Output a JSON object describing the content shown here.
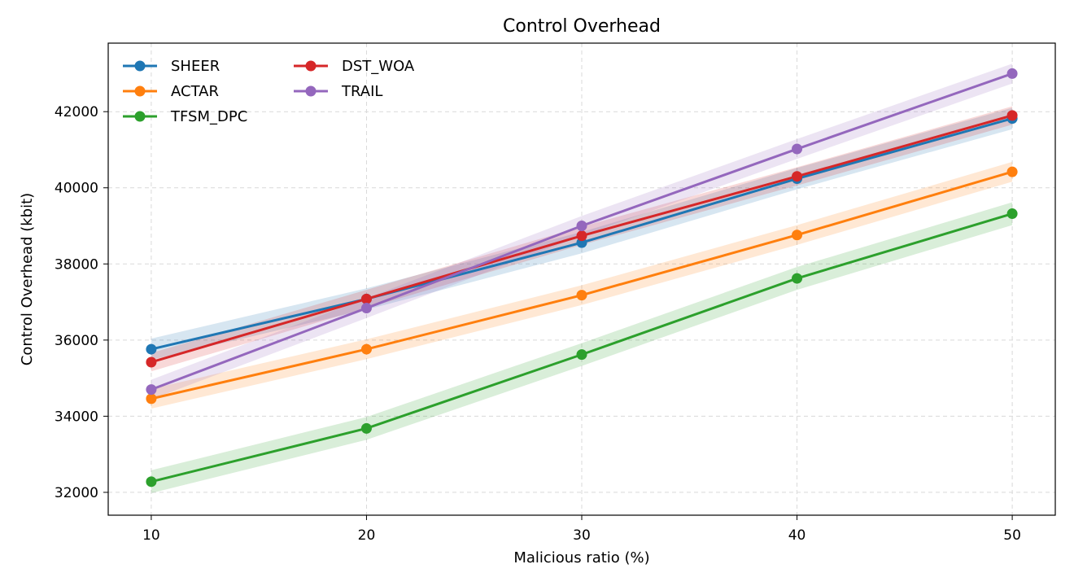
{
  "chart_data": {
    "type": "line",
    "title": "Control Overhead",
    "xlabel": "Malicious ratio (%)",
    "ylabel": "Control Overhead (kbit)",
    "x": [
      10,
      20,
      30,
      40,
      50
    ],
    "xlim": [
      8,
      52
    ],
    "ylim": [
      31400,
      43800
    ],
    "xticks": [
      10,
      20,
      30,
      40,
      50
    ],
    "yticks": [
      32000,
      34000,
      36000,
      38000,
      40000,
      42000
    ],
    "grid": true,
    "legend_position": "top-left",
    "series": [
      {
        "name": "SHEER",
        "color": "#1f77b4",
        "values": [
          35760,
          37080,
          38560,
          40240,
          41820
        ],
        "band": 280
      },
      {
        "name": "ACTAR",
        "color": "#ff7f0e",
        "values": [
          34460,
          35760,
          37180,
          38760,
          40420
        ],
        "band": 260
      },
      {
        "name": "TFSM_DPC",
        "color": "#2ca02c",
        "values": [
          32280,
          33680,
          35620,
          37620,
          39320
        ],
        "band": 300
      },
      {
        "name": "DST_WOA",
        "color": "#d62728",
        "values": [
          35420,
          37080,
          38740,
          40300,
          41900
        ],
        "band": 240
      },
      {
        "name": "TRAIL",
        "color": "#9467bd",
        "values": [
          34700,
          36840,
          39000,
          41020,
          43000
        ],
        "band": 260
      }
    ]
  }
}
